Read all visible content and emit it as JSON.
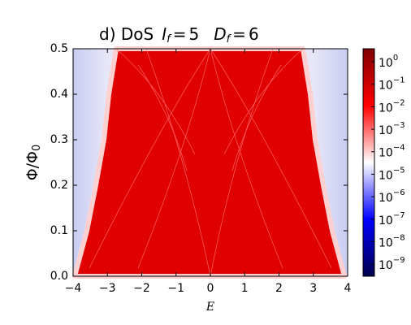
{
  "chart_data": {
    "type": "heatmap",
    "title": {
      "label": "d)",
      "name": "DoS",
      "params": [
        {
          "symbol": "I",
          "sub": "f",
          "eq": "=",
          "value": 5
        },
        {
          "symbol": "D",
          "sub": "f",
          "eq": "=",
          "value": 6
        }
      ]
    },
    "xlabel": "E",
    "ylabel": {
      "text": "Φ/Φ",
      "sub": "0"
    },
    "xlim": [
      -4,
      4
    ],
    "xticks": [
      {
        "value": -4,
        "label": "−4"
      },
      {
        "value": -3,
        "label": "−3"
      },
      {
        "value": -2,
        "label": "−2"
      },
      {
        "value": -1,
        "label": "−1"
      },
      0,
      1,
      2,
      3,
      4
    ],
    "ylim": [
      0,
      0.5
    ],
    "yticks": [
      {
        "value": 0,
        "label": "0.0"
      },
      0.1,
      0.2,
      0.3,
      0.4,
      {
        "value": 0.5,
        "label": "0.5"
      }
    ],
    "colorbar": {
      "log": true,
      "lim": [
        2.9e-10,
        3.8
      ],
      "ticks": [
        {
          "value": 1,
          "label": "10",
          "exponent": "0"
        },
        {
          "value": 0.1,
          "label": "10",
          "exponent": "−1"
        },
        {
          "value": 0.01,
          "label": "10",
          "exponent": "−2"
        },
        {
          "value": 0.001,
          "label": "10",
          "exponent": "−3"
        },
        {
          "value": 0.0001,
          "label": "10",
          "exponent": "−4"
        },
        {
          "value": 1e-05,
          "label": "10",
          "exponent": "−5"
        },
        {
          "value": 1e-06,
          "label": "10",
          "exponent": "−6"
        },
        {
          "value": 1e-07,
          "label": "10",
          "exponent": "−7"
        },
        {
          "value": 1e-08,
          "label": "10",
          "exponent": "−8"
        },
        {
          "value": 1e-09,
          "label": "10",
          "exponent": "−9"
        }
      ]
    }
  }
}
